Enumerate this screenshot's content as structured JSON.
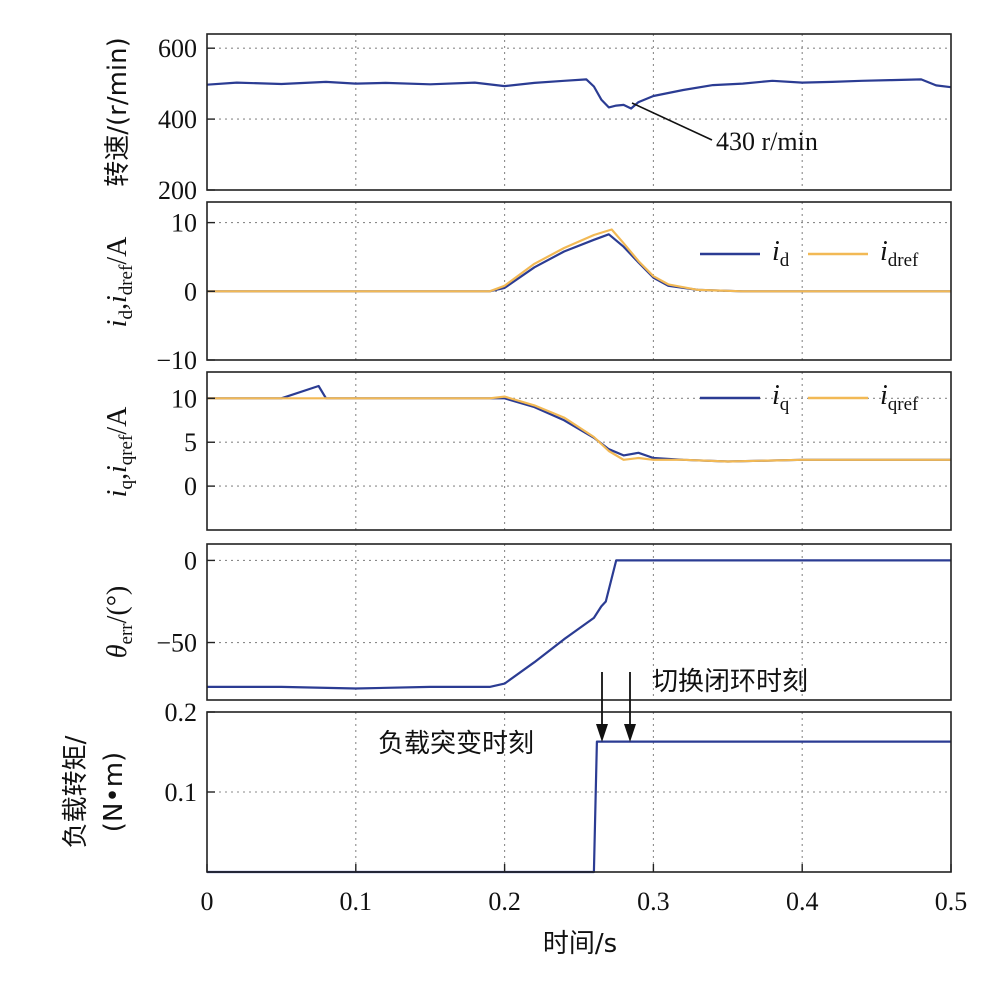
{
  "chart_data": [
    {
      "id": "speed",
      "type": "line",
      "ylabel": "转速/(r/min)",
      "ylim": [
        200,
        640
      ],
      "yticks": [
        200,
        400,
        600
      ],
      "xlim": [
        0,
        0.5
      ],
      "grid": true,
      "series": [
        {
          "color": "#2b3c93",
          "x": [
            0,
            0.02,
            0.05,
            0.08,
            0.1,
            0.12,
            0.15,
            0.18,
            0.2,
            0.22,
            0.24,
            0.255,
            0.26,
            0.265,
            0.27,
            0.275,
            0.28,
            0.285,
            0.29,
            0.3,
            0.32,
            0.34,
            0.36,
            0.38,
            0.4,
            0.42,
            0.44,
            0.46,
            0.48,
            0.49,
            0.5
          ],
          "y": [
            497,
            503,
            499,
            505,
            500,
            502,
            498,
            503,
            493,
            502,
            508,
            512,
            492,
            455,
            433,
            438,
            440,
            430,
            448,
            465,
            482,
            496,
            500,
            508,
            503,
            505,
            508,
            510,
            512,
            495,
            490
          ]
        }
      ],
      "annotations": [
        {
          "text": "430 r/min",
          "x": 0.285,
          "y": 430
        }
      ]
    },
    {
      "id": "id",
      "type": "line",
      "ylim": [
        -10,
        13
      ],
      "yticks": [
        -10,
        0,
        10
      ],
      "xlim": [
        0,
        0.5
      ],
      "grid": true,
      "legend": "top-right",
      "series": [
        {
          "name": "i_d",
          "color": "#2b3c93",
          "x": [
            0,
            0.05,
            0.1,
            0.15,
            0.19,
            0.2,
            0.22,
            0.24,
            0.26,
            0.27,
            0.28,
            0.29,
            0.3,
            0.31,
            0.33,
            0.36,
            0.4,
            0.45,
            0.5
          ],
          "y": [
            0,
            0,
            0,
            0,
            0,
            0.5,
            3.5,
            5.8,
            7.5,
            8.3,
            6.5,
            4.2,
            2.0,
            0.8,
            0.2,
            0,
            0,
            0,
            0
          ]
        },
        {
          "name": "i_dref",
          "color": "#f2b955",
          "x": [
            0,
            0.05,
            0.1,
            0.15,
            0.19,
            0.2,
            0.22,
            0.24,
            0.26,
            0.272,
            0.28,
            0.29,
            0.3,
            0.31,
            0.33,
            0.36,
            0.4,
            0.45,
            0.5
          ],
          "y": [
            0,
            0,
            0,
            0,
            0,
            0.8,
            4.0,
            6.3,
            8.2,
            9.0,
            7.0,
            4.4,
            2.2,
            1.0,
            0.2,
            0,
            0,
            0,
            0
          ]
        }
      ]
    },
    {
      "id": "iq",
      "type": "line",
      "ylim": [
        -5,
        13
      ],
      "yticks": [
        0,
        5,
        10
      ],
      "xlim": [
        0,
        0.5
      ],
      "grid": true,
      "legend": "top-right",
      "series": [
        {
          "name": "i_q",
          "color": "#2b3c93",
          "x": [
            0,
            0.05,
            0.075,
            0.08,
            0.1,
            0.15,
            0.19,
            0.2,
            0.22,
            0.24,
            0.26,
            0.27,
            0.28,
            0.29,
            0.3,
            0.32,
            0.35,
            0.4,
            0.45,
            0.5
          ],
          "y": [
            10,
            10,
            11.4,
            10,
            10,
            10,
            10,
            10,
            9,
            7.5,
            5.5,
            4.2,
            3.5,
            3.8,
            3.2,
            3.0,
            2.8,
            3.0,
            3.0,
            3.0
          ]
        },
        {
          "name": "i_qref",
          "color": "#f2b955",
          "x": [
            0,
            0.05,
            0.1,
            0.15,
            0.19,
            0.2,
            0.22,
            0.24,
            0.26,
            0.27,
            0.28,
            0.29,
            0.3,
            0.32,
            0.35,
            0.4,
            0.45,
            0.5
          ],
          "y": [
            10,
            10,
            10,
            10,
            10,
            10.2,
            9.2,
            7.8,
            5.6,
            4.0,
            3.0,
            3.2,
            3.0,
            3.0,
            2.8,
            3.0,
            3.0,
            3.0
          ]
        }
      ]
    },
    {
      "id": "theta",
      "type": "line",
      "ylim": [
        -85,
        10
      ],
      "yticks": [
        -50,
        0
      ],
      "xlim": [
        0,
        0.5
      ],
      "grid": true,
      "series": [
        {
          "color": "#2b3c93",
          "x": [
            0,
            0.05,
            0.1,
            0.15,
            0.19,
            0.2,
            0.22,
            0.24,
            0.26,
            0.265,
            0.268,
            0.275,
            0.3,
            0.4,
            0.5
          ],
          "y": [
            -77,
            -77,
            -78,
            -77,
            -77,
            -75,
            -62,
            -48,
            -35,
            -28,
            -25,
            0,
            0,
            0,
            0
          ]
        }
      ]
    },
    {
      "id": "torque",
      "type": "line",
      "ylabel": "负载转矩/\n(N•m)",
      "ylim": [
        0,
        0.2
      ],
      "yticks": [
        0.1,
        0.2
      ],
      "xlim": [
        0,
        0.5
      ],
      "xticks": [
        0,
        0.1,
        0.2,
        0.3,
        0.4,
        0.5
      ],
      "xlabel": "时间/s",
      "grid": true,
      "series": [
        {
          "color": "#2b3c93",
          "x": [
            0,
            0.26,
            0.262,
            0.5
          ],
          "y": [
            0,
            0,
            0.163,
            0.163
          ]
        }
      ],
      "annotations": [
        {
          "text": "负载突变时刻",
          "x": 0.262
        },
        {
          "text": "切换闭环时刻",
          "x": 0.282
        }
      ]
    }
  ],
  "labels": {
    "speed_ylabel": "转速/(r/min)",
    "id_ylabel_i1": "i",
    "id_ylabel_s1": "d",
    "id_ylabel_i2": ",i",
    "id_ylabel_s2": "dref",
    "id_ylabel_unit": "/A",
    "iq_ylabel_i1": "i",
    "iq_ylabel_s1": "q",
    "iq_ylabel_i2": ",i",
    "iq_ylabel_s2": "qref",
    "iq_ylabel_unit": "/A",
    "theta_ylabel_sym": "θ",
    "theta_ylabel_sub": "err",
    "theta_ylabel_unit": "/(°)",
    "torque_ylabel_line1": "负载转矩/",
    "torque_ylabel_line2": "(N•m)",
    "xlabel": "时间/s",
    "speed_annotation": "430 r/min",
    "load_change": "负载突变时刻",
    "closed_loop": "切换闭环时刻",
    "legend_id_sym": "i",
    "legend_id_sub": "d",
    "legend_idref_sym": "i",
    "legend_idref_sub": "dref",
    "legend_iq_sym": "i",
    "legend_iq_sub": "q",
    "legend_iqref_sym": "i",
    "legend_iqref_sub": "qref"
  },
  "colors": {
    "blue": "#2b3c93",
    "orange": "#f2b955"
  }
}
